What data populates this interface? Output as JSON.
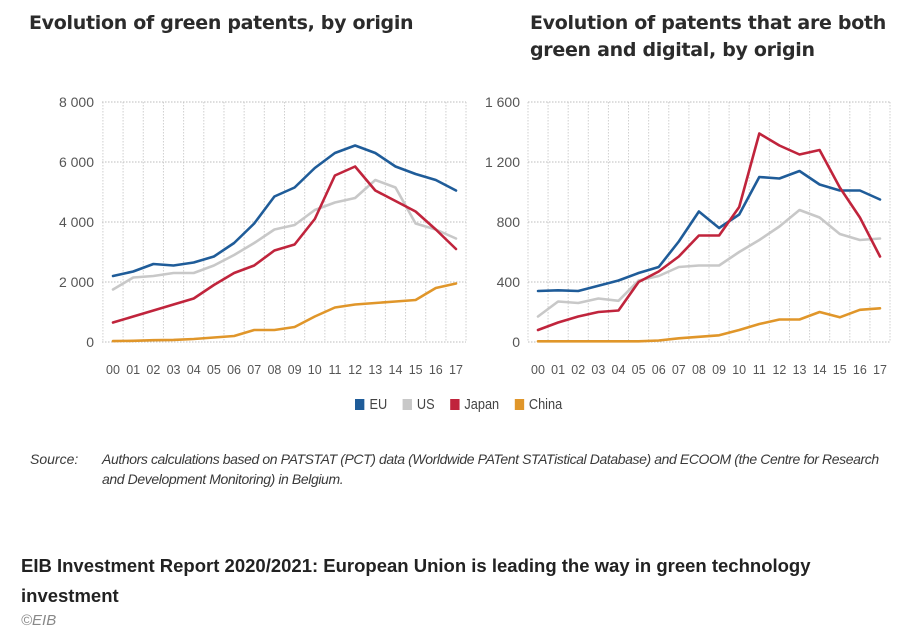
{
  "chart_data": [
    {
      "type": "line",
      "title": "Evolution of green patents, by origin",
      "xlabel": "",
      "ylabel": "",
      "x": [
        "00",
        "01",
        "02",
        "03",
        "04",
        "05",
        "06",
        "07",
        "08",
        "09",
        "10",
        "11",
        "12",
        "13",
        "14",
        "15",
        "16",
        "17"
      ],
      "ylim": [
        0,
        8000
      ],
      "yticks": [
        0,
        2000,
        4000,
        6000,
        8000
      ],
      "ytick_labels": [
        "0",
        "2 000",
        "4 000",
        "6 000",
        "8 000"
      ],
      "grid": true,
      "series": [
        {
          "name": "EU",
          "color": "#1f5c99",
          "values": [
            2200,
            2350,
            2600,
            2550,
            2650,
            2850,
            3300,
            3950,
            4850,
            5150,
            5800,
            6300,
            6550,
            6300,
            5850,
            5600,
            5400,
            5050
          ]
        },
        {
          "name": "US",
          "color": "#c8c8c8",
          "values": [
            1750,
            2150,
            2200,
            2300,
            2300,
            2550,
            2900,
            3300,
            3750,
            3900,
            4400,
            4650,
            4800,
            5400,
            5150,
            3950,
            3750,
            3450
          ]
        },
        {
          "name": "Japan",
          "color": "#c0243c",
          "values": [
            650,
            850,
            1050,
            1250,
            1450,
            1900,
            2300,
            2550,
            3050,
            3250,
            4100,
            5550,
            5850,
            5050,
            4700,
            4350,
            3750,
            3100
          ]
        },
        {
          "name": "China",
          "color": "#e0962a",
          "values": [
            30,
            40,
            60,
            70,
            100,
            150,
            200,
            400,
            400,
            500,
            850,
            1150,
            1250,
            1300,
            1350,
            1400,
            1800,
            1950
          ]
        }
      ]
    },
    {
      "type": "line",
      "title": "Evolution of patents that are both green and digital, by origin",
      "xlabel": "",
      "ylabel": "",
      "x": [
        "00",
        "01",
        "02",
        "03",
        "04",
        "05",
        "06",
        "07",
        "08",
        "09",
        "10",
        "11",
        "12",
        "13",
        "14",
        "15",
        "16",
        "17"
      ],
      "ylim": [
        0,
        1600
      ],
      "yticks": [
        0,
        400,
        800,
        1200,
        1600
      ],
      "ytick_labels": [
        "0",
        "400",
        "800",
        "1 200",
        "1 600"
      ],
      "grid": true,
      "series": [
        {
          "name": "EU",
          "color": "#1f5c99",
          "values": [
            340,
            345,
            340,
            375,
            410,
            460,
            500,
            670,
            870,
            760,
            850,
            1100,
            1090,
            1140,
            1050,
            1010,
            1010,
            950
          ]
        },
        {
          "name": "US",
          "color": "#c8c8c8",
          "values": [
            170,
            270,
            260,
            290,
            275,
            410,
            440,
            500,
            510,
            510,
            600,
            680,
            770,
            880,
            830,
            720,
            680,
            690
          ]
        },
        {
          "name": "Japan",
          "color": "#c0243c",
          "values": [
            80,
            130,
            170,
            200,
            210,
            400,
            470,
            570,
            710,
            710,
            900,
            1390,
            1310,
            1250,
            1280,
            1030,
            830,
            570
          ]
        },
        {
          "name": "China",
          "color": "#e0962a",
          "values": [
            5,
            5,
            5,
            5,
            5,
            5,
            10,
            25,
            35,
            45,
            80,
            120,
            150,
            150,
            200,
            165,
            215,
            225
          ]
        }
      ]
    }
  ],
  "titles": {
    "left": "Evolution of green patents, by origin",
    "right": "Evolution of patents that are both green and digital, by origin"
  },
  "legend": [
    {
      "label": "EU",
      "color": "#1f5c99"
    },
    {
      "label": "US",
      "color": "#c8c8c8"
    },
    {
      "label": "Japan",
      "color": "#c0243c"
    },
    {
      "label": "China",
      "color": "#e0962a"
    }
  ],
  "source": {
    "label": "Source:",
    "text": "Authors calculations based on PATSTAT (PCT) data (Worldwide PATent STATistical Database) and ECOOM (the Centre for Research and Development Monitoring) in Belgium."
  },
  "caption": "EIB Investment Report 2020/2021: European Union is leading the way in green technology investment",
  "credit": "©EIB"
}
